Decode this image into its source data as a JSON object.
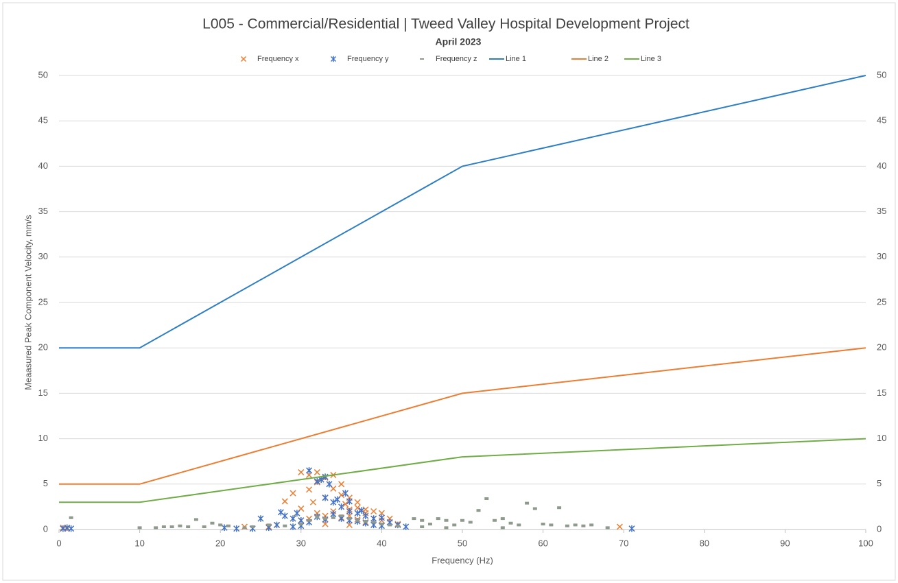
{
  "chart_data": {
    "type": "scatter",
    "title": "L005 -  Commercial/Residential | Tweed Valley Hospital Development Project",
    "subtitle": "April 2023",
    "xlabel": "Frequency (Hz)",
    "ylabel": "Meaasured Peak Component Velocity, mm/s",
    "xlim": [
      0,
      100
    ],
    "xticks": [
      0,
      10,
      20,
      30,
      40,
      50,
      60,
      70,
      80,
      90,
      100
    ],
    "ylim": [
      0,
      50
    ],
    "yticks": [
      0,
      5,
      10,
      15,
      20,
      25,
      30,
      35,
      40,
      45,
      50
    ],
    "y2lim": [
      0,
      50
    ],
    "y2ticks": [
      0,
      5,
      10,
      15,
      20,
      25,
      30,
      35,
      40,
      45,
      50
    ],
    "grid": true,
    "legend": "top",
    "series": [
      {
        "name": "Frequency x",
        "color": "#ed7d31",
        "mode": "markers",
        "marker": "x",
        "x": [
          0.5,
          1,
          23,
          26,
          27,
          28,
          29,
          30,
          30,
          30,
          31,
          31,
          31,
          31.5,
          32,
          32,
          32,
          33,
          33,
          33,
          33,
          34,
          34,
          34,
          35,
          35,
          35,
          35.5,
          36,
          36,
          36,
          36,
          37,
          37,
          37,
          38,
          38,
          38,
          39,
          39,
          40,
          40,
          41,
          42,
          69.5
        ],
        "values": [
          0.2,
          0.1,
          0.3,
          0.3,
          0.5,
          3.1,
          4,
          6.3,
          2.3,
          1,
          6,
          4.4,
          1.2,
          3,
          6.3,
          5.2,
          1.8,
          5.7,
          3.5,
          1.5,
          0.6,
          6,
          4.5,
          2,
          5,
          3.8,
          1.3,
          2.8,
          3.5,
          2.2,
          1.5,
          0.5,
          3,
          2.4,
          1.1,
          2.2,
          1.8,
          0.8,
          2,
          1.2,
          1.8,
          1,
          1.2,
          0.6,
          0.3
        ]
      },
      {
        "name": "Frequency y",
        "color": "#4472c4",
        "mode": "markers",
        "marker": "star",
        "x": [
          0.5,
          1,
          1.5,
          20.5,
          22,
          24,
          25,
          26,
          27,
          27.5,
          28,
          29,
          29,
          29.5,
          30,
          30,
          31,
          31,
          32,
          32,
          32.5,
          33,
          33,
          33,
          33.5,
          34,
          34,
          34.5,
          35,
          35,
          35.5,
          36,
          36,
          36,
          37,
          37,
          37.5,
          38,
          38,
          39,
          39,
          40,
          40,
          41,
          42,
          43,
          71
        ],
        "values": [
          0.1,
          0.2,
          0.1,
          0.2,
          0.1,
          0.1,
          1.2,
          0.2,
          0.5,
          1.9,
          1.5,
          1.2,
          0.3,
          1.8,
          1,
          0.4,
          6.5,
          0.8,
          5.3,
          1.4,
          5.5,
          5.8,
          3.5,
          1.1,
          5,
          3,
          1.7,
          3.3,
          2.5,
          1.2,
          4,
          3.1,
          2,
          1,
          1.8,
          0.9,
          2.1,
          1.5,
          0.7,
          1.2,
          0.5,
          1.3,
          0.4,
          0.8,
          0.5,
          0.3,
          0.1
        ]
      },
      {
        "name": "Frequency z",
        "color": "#8f9a8f",
        "mode": "markers",
        "marker": "dash",
        "x": [
          1.5,
          10,
          12,
          13,
          14,
          15,
          16,
          17,
          18,
          19,
          20,
          21,
          23,
          24,
          26,
          28,
          30,
          31,
          32,
          33,
          34,
          35,
          36,
          37,
          38,
          39,
          40,
          41,
          42,
          44,
          45,
          45,
          46,
          47,
          48,
          48,
          49,
          50,
          51,
          52,
          53,
          54,
          55,
          55,
          56,
          57,
          58,
          59,
          60,
          61,
          62,
          63,
          64,
          65,
          66,
          68
        ],
        "values": [
          1.3,
          0.2,
          0.2,
          0.3,
          0.3,
          0.4,
          0.3,
          1.1,
          0.3,
          0.7,
          0.5,
          0.4,
          0.2,
          0.3,
          0.5,
          0.4,
          0.6,
          1,
          1.4,
          1.2,
          1.3,
          1.5,
          1.2,
          1,
          0.9,
          0.8,
          0.6,
          0.5,
          0.4,
          1.2,
          1,
          0.3,
          0.6,
          1.2,
          1,
          0.2,
          0.5,
          1,
          0.8,
          2.1,
          3.4,
          1,
          1.2,
          0.2,
          0.7,
          0.5,
          2.9,
          2.3,
          0.6,
          0.5,
          2.4,
          0.4,
          0.5,
          0.4,
          0.5,
          0.2
        ]
      },
      {
        "name": "Line 1",
        "color": "#2e7ec4",
        "mode": "lines",
        "x": [
          0,
          10,
          50,
          100
        ],
        "values": [
          20,
          20,
          40,
          50
        ]
      },
      {
        "name": "Line 2",
        "color": "#ed7d31",
        "mode": "lines",
        "x": [
          0,
          10,
          50,
          100
        ],
        "values": [
          5,
          5,
          15,
          20
        ]
      },
      {
        "name": "Line 3",
        "color": "#70ad47",
        "mode": "lines",
        "x": [
          0,
          10,
          50,
          100
        ],
        "values": [
          3,
          3,
          8,
          10
        ]
      }
    ]
  }
}
